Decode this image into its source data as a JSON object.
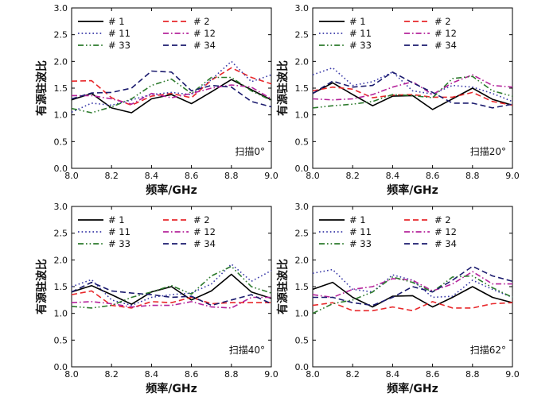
{
  "chart_data": [
    {
      "type": "line",
      "annotation": "扫描0°",
      "xlabel": "频率/GHz",
      "ylabel": "有源驻波比",
      "xlim": [
        8.0,
        9.0
      ],
      "ylim": [
        0.0,
        3.0
      ],
      "xticks": [
        "8.0",
        "8.2",
        "8.4",
        "8.6",
        "8.8",
        "9.0"
      ],
      "yticks": [
        "0.0",
        "0.5",
        "1.0",
        "1.5",
        "2.0",
        "2.5",
        "3.0"
      ],
      "grid": false,
      "legend_position": "top-left",
      "x": [
        8.0,
        8.1,
        8.2,
        8.3,
        8.4,
        8.5,
        8.6,
        8.7,
        8.8,
        8.9,
        9.0
      ],
      "series": [
        {
          "name": "# 1",
          "values": [
            1.28,
            1.4,
            1.13,
            1.04,
            1.3,
            1.38,
            1.21,
            1.43,
            1.66,
            1.47,
            1.28
          ]
        },
        {
          "name": "# 2",
          "values": [
            1.63,
            1.64,
            1.32,
            1.18,
            1.35,
            1.4,
            1.32,
            1.65,
            1.88,
            1.7,
            1.58
          ]
        },
        {
          "name": "# 11",
          "values": [
            1.05,
            1.22,
            1.18,
            1.28,
            1.38,
            1.42,
            1.38,
            1.66,
            2.0,
            1.62,
            1.75
          ]
        },
        {
          "name": "# 12",
          "values": [
            1.36,
            1.36,
            1.3,
            1.2,
            1.4,
            1.32,
            1.4,
            1.5,
            1.56,
            1.52,
            1.3
          ]
        },
        {
          "name": "# 33",
          "values": [
            1.12,
            1.04,
            1.15,
            1.3,
            1.55,
            1.67,
            1.4,
            1.7,
            1.7,
            1.45,
            1.27
          ]
        },
        {
          "name": "# 34",
          "values": [
            1.3,
            1.41,
            1.42,
            1.5,
            1.82,
            1.8,
            1.45,
            1.55,
            1.52,
            1.25,
            1.15
          ]
        }
      ]
    },
    {
      "type": "line",
      "annotation": "扫描20°",
      "xlabel": "频率/GHz",
      "ylabel": "有源驻波比",
      "xlim": [
        8.0,
        9.0
      ],
      "ylim": [
        0.0,
        3.0
      ],
      "xticks": [
        "8.0",
        "8.2",
        "8.4",
        "8.6",
        "8.8",
        "9.0"
      ],
      "yticks": [
        "0.0",
        "0.5",
        "1.0",
        "1.5",
        "2.0",
        "2.5",
        "3.0"
      ],
      "grid": false,
      "legend_position": "top-left",
      "x": [
        8.0,
        8.1,
        8.2,
        8.3,
        8.4,
        8.5,
        8.6,
        8.7,
        8.8,
        8.9,
        9.0
      ],
      "series": [
        {
          "name": "# 1",
          "values": [
            1.4,
            1.6,
            1.38,
            1.17,
            1.35,
            1.36,
            1.1,
            1.3,
            1.5,
            1.29,
            1.18
          ]
        },
        {
          "name": "# 2",
          "values": [
            1.45,
            1.52,
            1.48,
            1.32,
            1.37,
            1.38,
            1.33,
            1.33,
            1.42,
            1.25,
            1.18
          ]
        },
        {
          "name": "# 11",
          "values": [
            1.75,
            1.88,
            1.55,
            1.62,
            1.8,
            1.45,
            1.39,
            1.55,
            1.52,
            1.4,
            1.25
          ]
        },
        {
          "name": "# 12",
          "values": [
            1.3,
            1.28,
            1.3,
            1.38,
            1.52,
            1.62,
            1.38,
            1.6,
            1.75,
            1.55,
            1.52
          ]
        },
        {
          "name": "# 33",
          "values": [
            1.13,
            1.17,
            1.2,
            1.25,
            1.38,
            1.36,
            1.32,
            1.68,
            1.72,
            1.45,
            1.35
          ]
        },
        {
          "name": "# 34",
          "values": [
            1.4,
            1.63,
            1.52,
            1.55,
            1.8,
            1.6,
            1.42,
            1.22,
            1.22,
            1.13,
            1.2
          ]
        }
      ]
    },
    {
      "type": "line",
      "annotation": "扫描40°",
      "xlabel": "频率/GHz",
      "ylabel": "有源驻波比",
      "xlim": [
        8.0,
        9.0
      ],
      "ylim": [
        0.0,
        3.0
      ],
      "xticks": [
        "8.0",
        "8.2",
        "8.4",
        "8.6",
        "8.8",
        "9.0"
      ],
      "yticks": [
        "0.0",
        "0.5",
        "1.0",
        "1.5",
        "2.0",
        "2.5",
        "3.0"
      ],
      "grid": false,
      "legend_position": "top-left",
      "x": [
        8.0,
        8.1,
        8.2,
        8.3,
        8.4,
        8.5,
        8.6,
        8.7,
        8.8,
        8.9,
        9.0
      ],
      "series": [
        {
          "name": "# 1",
          "values": [
            1.4,
            1.52,
            1.35,
            1.17,
            1.4,
            1.5,
            1.25,
            1.42,
            1.73,
            1.4,
            1.28
          ]
        },
        {
          "name": "# 2",
          "values": [
            1.35,
            1.42,
            1.15,
            1.1,
            1.22,
            1.2,
            1.3,
            1.18,
            1.2,
            1.2,
            1.2
          ]
        },
        {
          "name": "# 11",
          "values": [
            1.5,
            1.63,
            1.25,
            1.15,
            1.3,
            1.35,
            1.38,
            1.55,
            1.92,
            1.6,
            1.8
          ]
        },
        {
          "name": "# 12",
          "values": [
            1.2,
            1.22,
            1.18,
            1.12,
            1.15,
            1.15,
            1.22,
            1.12,
            1.1,
            1.3,
            1.3
          ]
        },
        {
          "name": "# 33",
          "values": [
            1.13,
            1.1,
            1.15,
            1.3,
            1.4,
            1.52,
            1.36,
            1.7,
            1.88,
            1.5,
            1.38
          ]
        },
        {
          "name": "# 34",
          "values": [
            1.4,
            1.58,
            1.42,
            1.38,
            1.35,
            1.3,
            1.32,
            1.15,
            1.25,
            1.35,
            1.18
          ]
        }
      ]
    },
    {
      "type": "line",
      "annotation": "扫描62°",
      "xlabel": "频率/GHz",
      "ylabel": "有源驻波比",
      "xlim": [
        8.0,
        9.0
      ],
      "ylim": [
        0.0,
        3.0
      ],
      "xticks": [
        "8.0",
        "8.2",
        "8.4",
        "8.6",
        "8.8",
        "9.0"
      ],
      "yticks": [
        "0.0",
        "0.5",
        "1.0",
        "1.5",
        "2.0",
        "2.5",
        "3.0"
      ],
      "grid": false,
      "legend_position": "top-left",
      "x": [
        8.0,
        8.1,
        8.2,
        8.3,
        8.4,
        8.5,
        8.6,
        8.7,
        8.8,
        8.9,
        9.0
      ],
      "series": [
        {
          "name": "# 1",
          "values": [
            1.45,
            1.58,
            1.3,
            1.12,
            1.32,
            1.33,
            1.12,
            1.3,
            1.5,
            1.3,
            1.2
          ]
        },
        {
          "name": "# 2",
          "values": [
            1.15,
            1.2,
            1.05,
            1.05,
            1.12,
            1.05,
            1.22,
            1.1,
            1.1,
            1.18,
            1.2
          ]
        },
        {
          "name": "# 11",
          "values": [
            1.75,
            1.82,
            1.45,
            1.4,
            1.72,
            1.62,
            1.3,
            1.32,
            1.62,
            1.45,
            1.3
          ]
        },
        {
          "name": "# 12",
          "values": [
            1.35,
            1.3,
            1.45,
            1.5,
            1.65,
            1.62,
            1.42,
            1.55,
            1.78,
            1.55,
            1.55
          ]
        },
        {
          "name": "# 33",
          "values": [
            1.0,
            1.18,
            1.25,
            1.4,
            1.68,
            1.58,
            1.4,
            1.68,
            1.7,
            1.48,
            1.3
          ]
        },
        {
          "name": "# 34",
          "values": [
            1.3,
            1.3,
            1.2,
            1.15,
            1.3,
            1.5,
            1.4,
            1.62,
            1.88,
            1.7,
            1.6
          ]
        }
      ]
    }
  ],
  "series_styles": [
    {
      "name": "# 1",
      "color": "#000000",
      "dash": "solid"
    },
    {
      "name": "# 2",
      "color": "#e8282b",
      "dash": "dash"
    },
    {
      "name": "# 11",
      "color": "#3a3aa8",
      "dash": "dot"
    },
    {
      "name": "# 12",
      "color": "#b5249b",
      "dash": "dash-dot"
    },
    {
      "name": "# 33",
      "color": "#2c7a2c",
      "dash": "dash-dot-dot"
    },
    {
      "name": "# 34",
      "color": "#1b1b6e",
      "dash": "dash"
    }
  ]
}
